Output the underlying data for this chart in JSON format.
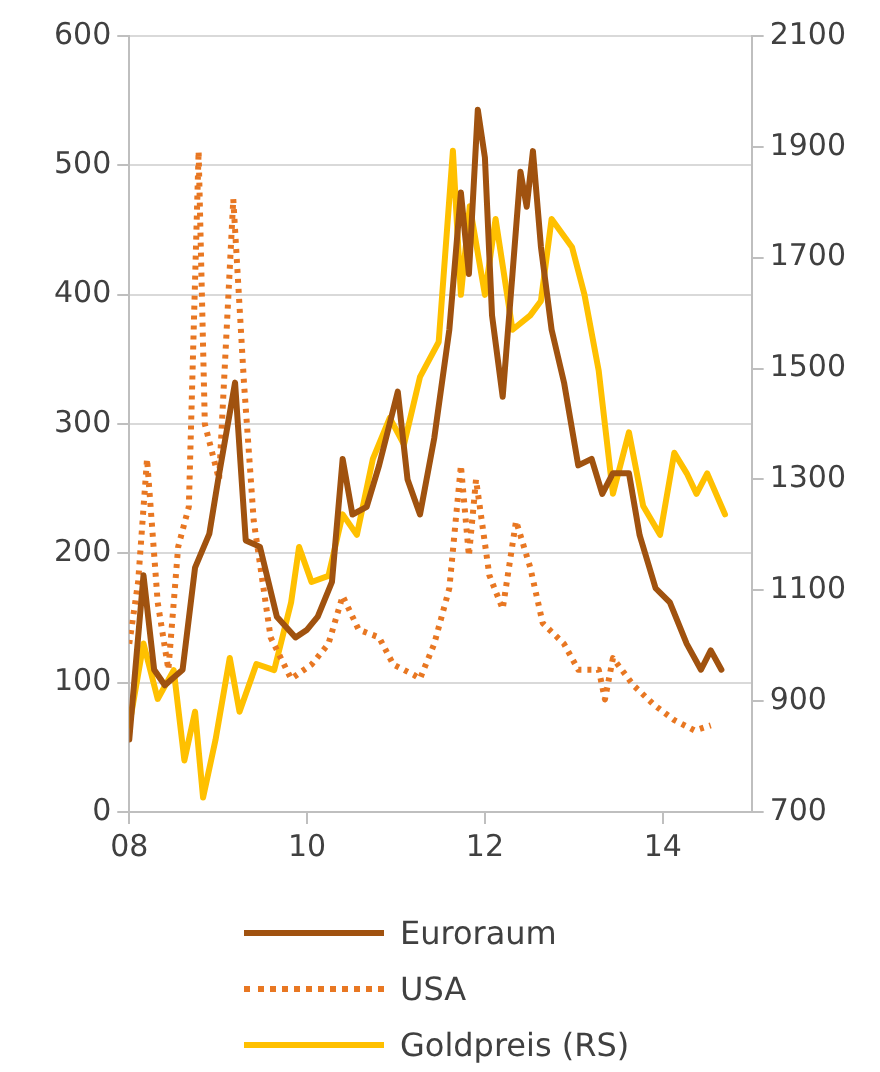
{
  "chart_data": {
    "type": "line",
    "xlim": [
      8,
      15
    ],
    "xticks": [
      {
        "value": 8,
        "label": "08"
      },
      {
        "value": 10,
        "label": "10"
      },
      {
        "value": 12,
        "label": "12"
      },
      {
        "value": 14,
        "label": "14"
      }
    ],
    "ylim": [
      0,
      600
    ],
    "yticks": [
      0,
      100,
      200,
      300,
      400,
      500,
      600
    ],
    "y2lim": [
      700,
      2100
    ],
    "y2ticks": [
      700,
      900,
      1100,
      1300,
      1500,
      1700,
      1900,
      2100
    ],
    "grid": "y",
    "legend": "bottom",
    "marker": "none",
    "series": [
      {
        "name": "Euroraum",
        "color": "#a0520f",
        "line_style": "solid",
        "x": [
          8.0,
          8.16,
          8.28,
          8.4,
          8.6,
          8.74,
          8.9,
          9.0,
          9.19,
          9.31,
          9.47,
          9.66,
          9.87,
          10.0,
          10.12,
          10.28,
          10.4,
          10.51,
          10.67,
          10.81,
          11.02,
          11.13,
          11.27,
          11.43,
          11.6,
          11.73,
          11.82,
          11.92,
          12.0,
          12.08,
          12.2,
          12.31,
          12.4,
          12.47,
          12.54,
          12.63,
          12.75,
          12.89,
          13.05,
          13.2,
          13.32,
          13.44,
          13.62,
          13.74,
          13.92,
          14.08,
          14.27,
          14.43,
          14.54,
          14.66
        ],
        "values": [
          56,
          183,
          110,
          98,
          110,
          189,
          215,
          257,
          332,
          210,
          205,
          151,
          135,
          141,
          151,
          178,
          273,
          230,
          236,
          268,
          325,
          257,
          230,
          289,
          373,
          479,
          416,
          543,
          506,
          384,
          321,
          416,
          495,
          468,
          511,
          437,
          373,
          332,
          268,
          273,
          246,
          262,
          262,
          214,
          173,
          162,
          130,
          110,
          125,
          110
        ]
      },
      {
        "name": "USA",
        "color": "#e87722",
        "line_style": "dotted",
        "x": [
          8.0,
          8.1,
          8.2,
          8.32,
          8.44,
          8.55,
          8.67,
          8.78,
          8.85,
          9.01,
          9.17,
          9.29,
          9.4,
          9.59,
          9.82,
          10.05,
          10.24,
          10.4,
          10.58,
          10.81,
          10.97,
          11.2,
          11.27,
          11.43,
          11.6,
          11.73,
          11.82,
          11.9,
          12.05,
          12.2,
          12.35,
          12.51,
          12.65,
          12.89,
          13.05,
          13.28,
          13.35,
          13.44,
          13.67,
          13.9,
          14.13,
          14.36,
          14.54
        ],
        "values": [
          130,
          178,
          273,
          162,
          110,
          205,
          236,
          511,
          300,
          257,
          474,
          332,
          225,
          135,
          103,
          114,
          130,
          167,
          141,
          135,
          114,
          106,
          103,
          130,
          173,
          268,
          198,
          257,
          183,
          157,
          225,
          189,
          146,
          130,
          110,
          110,
          87,
          119,
          98,
          83,
          71,
          63,
          67
        ]
      },
      {
        "name": "Goldpreis (RS)",
        "color": "#ffc000",
        "line_style": "solid",
        "axis": "y2",
        "x": [
          8.0,
          8.16,
          8.32,
          8.5,
          8.62,
          8.74,
          8.83,
          8.97,
          9.13,
          9.24,
          9.43,
          9.63,
          9.82,
          9.91,
          10.05,
          10.24,
          10.4,
          10.56,
          10.74,
          10.93,
          11.09,
          11.27,
          11.48,
          11.64,
          11.73,
          11.83,
          12.0,
          12.12,
          12.31,
          12.51,
          12.63,
          12.75,
          12.98,
          13.12,
          13.28,
          13.44,
          13.62,
          13.78,
          13.97,
          14.13,
          14.27,
          14.38,
          14.5,
          14.7
        ],
        "values": [
          856,
          1004,
          904,
          956,
          793,
          881,
          726,
          830,
          978,
          881,
          967,
          956,
          1078,
          1178,
          1115,
          1126,
          1237,
          1200,
          1337,
          1411,
          1363,
          1485,
          1548,
          1893,
          1633,
          1793,
          1633,
          1770,
          1570,
          1596,
          1622,
          1770,
          1719,
          1633,
          1496,
          1274,
          1385,
          1252,
          1200,
          1348,
          1311,
          1274,
          1311,
          1237
        ]
      }
    ]
  }
}
